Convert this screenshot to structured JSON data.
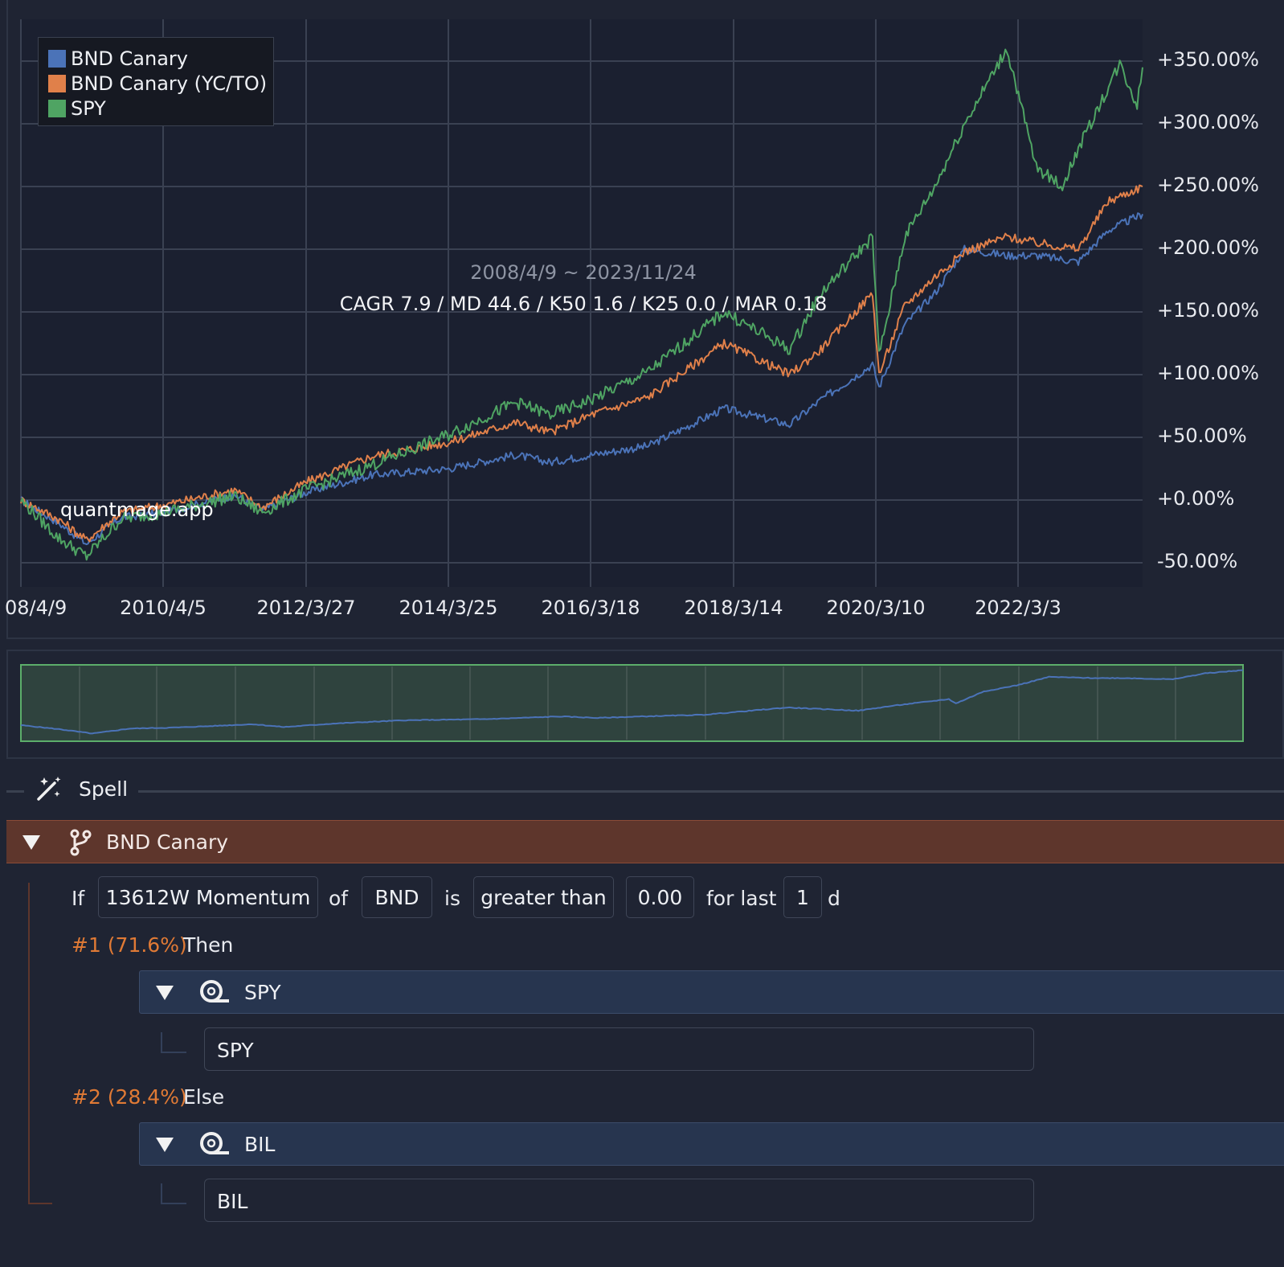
{
  "chart_data": {
    "type": "line",
    "title": "",
    "xlabel": "",
    "ylabel": "",
    "x_ticks": [
      "08/4/9",
      "2010/4/5",
      "2012/3/27",
      "2014/3/25",
      "2016/3/18",
      "2018/3/14",
      "2020/3/10",
      "2022/3/3"
    ],
    "y_ticks": [
      "+350.00%",
      "+300.00%",
      "+250.00%",
      "+200.00%",
      "+150.00%",
      "+100.00%",
      "+50.00%",
      "+0.00%",
      "-50.00%"
    ],
    "x_range": [
      "2008-04-09",
      "2023-11-24"
    ],
    "ylim": [
      -50,
      360
    ],
    "grid": true,
    "legend_position": "top-left",
    "series": [
      {
        "name": "BND Canary",
        "color": "#4b73b8",
        "points": [
          [
            "2008-04-09",
            0
          ],
          [
            "2008-10-15",
            -18
          ],
          [
            "2009-03-09",
            -35
          ],
          [
            "2009-09-01",
            -14
          ],
          [
            "2010-04-05",
            -10
          ],
          [
            "2011-04-01",
            4
          ],
          [
            "2011-08-20",
            -8
          ],
          [
            "2012-03-27",
            6
          ],
          [
            "2013-03-01",
            20
          ],
          [
            "2014-03-25",
            25
          ],
          [
            "2015-03-01",
            36
          ],
          [
            "2015-08-25",
            30
          ],
          [
            "2016-03-18",
            36
          ],
          [
            "2017-01-01",
            43
          ],
          [
            "2018-01-25",
            73
          ],
          [
            "2018-12-24",
            60
          ],
          [
            "2019-06-01",
            80
          ],
          [
            "2020-02-19",
            108
          ],
          [
            "2020-03-23",
            90
          ],
          [
            "2020-08-01",
            140
          ],
          [
            "2021-01-01",
            165
          ],
          [
            "2021-06-01",
            200
          ],
          [
            "2022-01-03",
            195
          ],
          [
            "2022-06-01",
            195
          ],
          [
            "2023-01-01",
            190
          ],
          [
            "2023-06-01",
            215
          ],
          [
            "2023-11-24",
            228
          ]
        ]
      },
      {
        "name": "BND Canary (YC/TO)",
        "color": "#e0804a",
        "points": [
          [
            "2008-04-09",
            0
          ],
          [
            "2008-10-15",
            -15
          ],
          [
            "2009-03-09",
            -32
          ],
          [
            "2009-09-01",
            -10
          ],
          [
            "2010-04-05",
            -4
          ],
          [
            "2011-04-01",
            8
          ],
          [
            "2011-08-20",
            -6
          ],
          [
            "2012-03-27",
            14
          ],
          [
            "2013-03-01",
            35
          ],
          [
            "2014-03-25",
            46
          ],
          [
            "2015-03-01",
            62
          ],
          [
            "2015-08-25",
            54
          ],
          [
            "2016-03-18",
            68
          ],
          [
            "2017-01-01",
            82
          ],
          [
            "2018-01-25",
            125
          ],
          [
            "2018-12-24",
            100
          ],
          [
            "2019-06-01",
            120
          ],
          [
            "2020-02-19",
            165
          ],
          [
            "2020-03-23",
            100
          ],
          [
            "2020-08-01",
            155
          ],
          [
            "2021-01-01",
            178
          ],
          [
            "2021-06-01",
            198
          ],
          [
            "2022-01-03",
            210
          ],
          [
            "2022-06-01",
            205
          ],
          [
            "2023-01-01",
            200
          ],
          [
            "2023-06-01",
            238
          ],
          [
            "2023-11-24",
            250
          ]
        ]
      },
      {
        "name": "SPY",
        "color": "#4fa463",
        "points": [
          [
            "2008-04-09",
            0
          ],
          [
            "2008-10-15",
            -30
          ],
          [
            "2009-03-09",
            -45
          ],
          [
            "2009-09-01",
            -15
          ],
          [
            "2010-04-05",
            -10
          ],
          [
            "2011-04-01",
            3
          ],
          [
            "2011-08-20",
            -10
          ],
          [
            "2012-03-27",
            8
          ],
          [
            "2013-03-01",
            28
          ],
          [
            "2014-03-25",
            52
          ],
          [
            "2015-03-01",
            78
          ],
          [
            "2015-08-25",
            68
          ],
          [
            "2016-03-18",
            80
          ],
          [
            "2017-01-01",
            102
          ],
          [
            "2018-01-25",
            150
          ],
          [
            "2018-12-24",
            120
          ],
          [
            "2019-06-01",
            165
          ],
          [
            "2020-02-19",
            210
          ],
          [
            "2020-03-23",
            115
          ],
          [
            "2020-08-01",
            210
          ],
          [
            "2021-01-01",
            250
          ],
          [
            "2021-06-01",
            300
          ],
          [
            "2022-01-03",
            360
          ],
          [
            "2022-06-01",
            265
          ],
          [
            "2022-10-12",
            250
          ],
          [
            "2023-01-01",
            280
          ],
          [
            "2023-07-31",
            348
          ],
          [
            "2023-10-27",
            315
          ],
          [
            "2023-11-24",
            345
          ]
        ]
      }
    ]
  },
  "overlay": {
    "date_range": "2008/4/9 ~ 2023/11/24",
    "stats": "CAGR 7.9 / MD 44.6 / K50 1.6 / K25 0.0 / MAR 0.18",
    "watermark": "quantmage.app"
  },
  "navigator": {
    "fill_color": "#2f433e",
    "border_color": "#5cae6a",
    "line_color": "#4b73b8"
  },
  "spell": {
    "label": "Spell",
    "icon": "magic-wand-icon"
  },
  "strategy": {
    "name": "BND Canary",
    "icon": "branch-icon",
    "condition": {
      "if_label": "If",
      "indicator": "13612W Momentum",
      "of_label": "of",
      "ticker": "BND",
      "is_label": "is",
      "comparator": "greater than",
      "threshold": "0.00",
      "for_last_label": "for last",
      "lookback": "1",
      "unit": "d"
    },
    "branches": [
      {
        "tag": "#1 (71.6%)",
        "label": "Then",
        "asset_group": "SPY",
        "asset": "SPY",
        "icon": "ticker-icon"
      },
      {
        "tag": "#2 (28.4%)",
        "label": "Else",
        "asset_group": "BIL",
        "asset": "BIL",
        "icon": "ticker-icon"
      }
    ]
  }
}
